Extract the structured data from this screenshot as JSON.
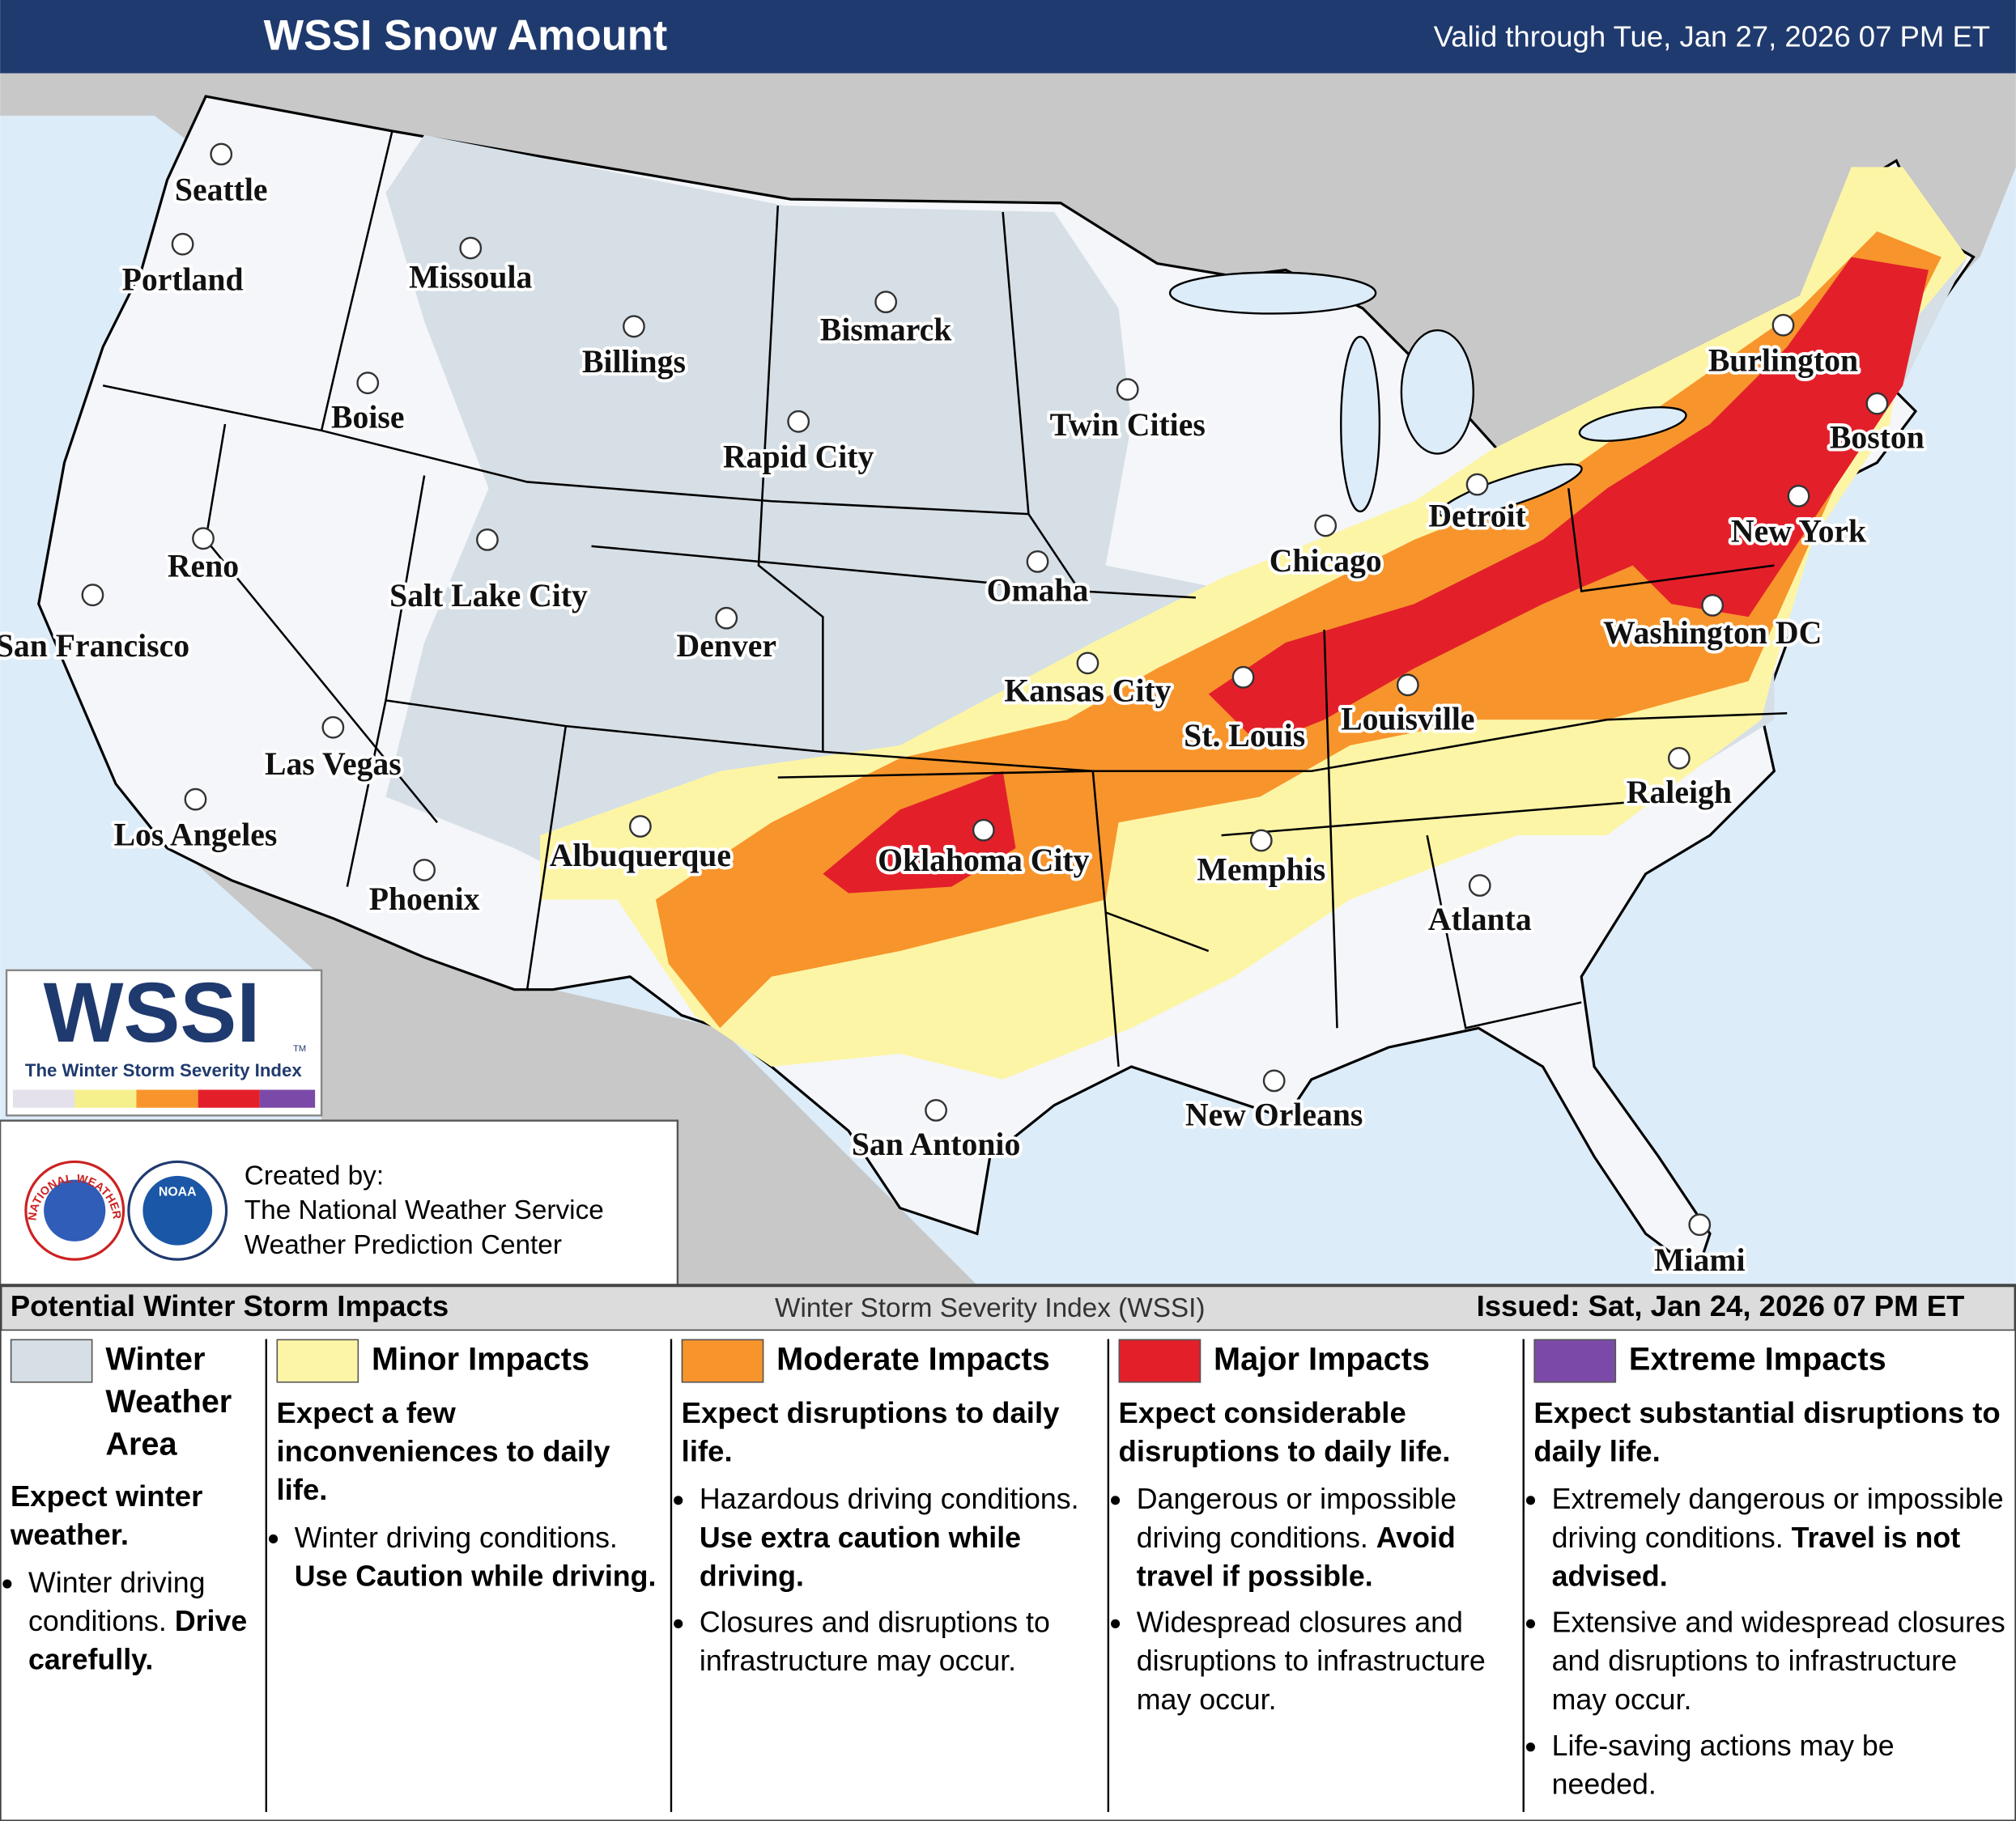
{
  "header": {
    "title": "WSSI Snow Amount",
    "valid": "Valid through Tue, Jan 27, 2026 07 PM ET"
  },
  "map": {
    "cities": [
      "Seattle",
      "Portland",
      "Missoula",
      "Billings",
      "Bismarck",
      "Boise",
      "Rapid City",
      "Twin Cities",
      "Reno",
      "Salt Lake City",
      "San Francisco",
      "Denver",
      "Omaha",
      "Chicago",
      "Detroit",
      "Burlington",
      "Boston",
      "New York",
      "Washington DC",
      "Kansas City",
      "St. Louis",
      "Louisville",
      "Las Vegas",
      "Los Angeles",
      "Albuquerque",
      "Oklahoma City",
      "Memphis",
      "Raleigh",
      "Phoenix",
      "Atlanta",
      "New Orleans",
      "San Antonio",
      "Miami"
    ]
  },
  "logo": {
    "name": "WSSI",
    "trademark": "TM",
    "subtitle": "The Winter Storm Severity Index"
  },
  "credits": {
    "nws": "NATIONAL WEATHER SERVICE",
    "noaa": "NOAA",
    "label": "Created by:",
    "lines": [
      "The National Weather Service",
      "Weather Prediction Center"
    ]
  },
  "legend": {
    "title": "Potential Winter Storm Impacts",
    "index_name": "Winter Storm Severity Index (WSSI)",
    "issued": "Issued: Sat, Jan 24, 2026 07 PM ET",
    "columns": [
      {
        "title": "Winter Weather Area",
        "color": "#d6dfe6",
        "summary": "Expect winter weather.",
        "bullets": [
          {
            "text": "Winter driving conditions.",
            "emphasis": "Drive carefully."
          }
        ]
      },
      {
        "title": "Minor Impacts",
        "color": "#fdf5a6",
        "summary": "Expect a few inconveniences to daily life.",
        "bullets": [
          {
            "text": "Winter driving conditions.",
            "emphasis": "Use Caution while driving."
          }
        ]
      },
      {
        "title": "Moderate Impacts",
        "color": "#f7952c",
        "summary": "Expect disruptions to daily life.",
        "bullets": [
          {
            "text": "Hazardous driving conditions.",
            "emphasis": "Use extra caution while driving."
          },
          {
            "text": "Closures and disruptions to infrastructure may occur."
          }
        ]
      },
      {
        "title": "Major Impacts",
        "color": "#e3202a",
        "summary": "Expect considerable disruptions to daily life.",
        "bullets": [
          {
            "text": "Dangerous or impossible driving conditions.",
            "emphasis": "Avoid travel if possible."
          },
          {
            "text": "Widespread closures and disruptions to infrastructure may occur."
          }
        ]
      },
      {
        "title": "Extreme Impacts",
        "color": "#7b4aa8",
        "summary": "Expect substantial disruptions to daily life.",
        "bullets": [
          {
            "text": "Extremely dangerous or impossible driving conditions.",
            "emphasis": "Travel is not advised."
          },
          {
            "text": "Extensive and widespread closures and disruptions to infrastructure may occur."
          },
          {
            "text": "Life-saving actions may be needed."
          }
        ]
      }
    ]
  }
}
